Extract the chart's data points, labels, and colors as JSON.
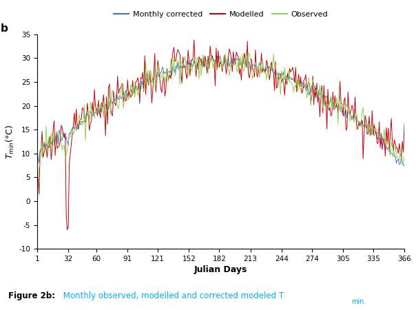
{
  "ylim": [
    -10,
    35
  ],
  "yticks": [
    -10,
    -5,
    0,
    5,
    10,
    15,
    20,
    25,
    30,
    35
  ],
  "xticks": [
    1,
    32,
    60,
    91,
    121,
    152,
    182,
    213,
    244,
    274,
    305,
    335,
    366
  ],
  "xlabel": "Julian Days",
  "color_monthly": "#4472C4",
  "color_modelled": "#C0000C",
  "color_observed": "#92D050",
  "label_monthly": "Monthly corrected",
  "label_modelled": "Modelled",
  "label_observed": "Observed",
  "panel_label": "b",
  "linewidth": 0.7,
  "fig_width": 6.04,
  "fig_height": 4.5
}
